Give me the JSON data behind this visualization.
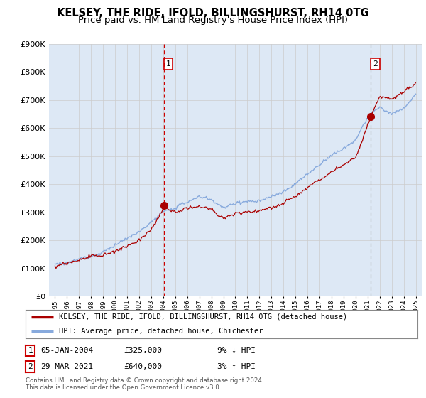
{
  "title": "KELSEY, THE RIDE, IFOLD, BILLINGSHURST, RH14 0TG",
  "subtitle": "Price paid vs. HM Land Registry's House Price Index (HPI)",
  "legend_line1": "KELSEY, THE RIDE, IFOLD, BILLINGSHURST, RH14 0TG (detached house)",
  "legend_line2": "HPI: Average price, detached house, Chichester",
  "annotation1": {
    "label": "1",
    "date": "05-JAN-2004",
    "price": "£325,000",
    "note": "9% ↓ HPI"
  },
  "annotation2": {
    "label": "2",
    "date": "29-MAR-2021",
    "price": "£640,000",
    "note": "3% ↑ HPI"
  },
  "footer": "Contains HM Land Registry data © Crown copyright and database right 2024.\nThis data is licensed under the Open Government Licence v3.0.",
  "sale1_x": 2004.04,
  "sale1_y": 325000,
  "sale2_x": 2021.24,
  "sale2_y": 640000,
  "ylim": [
    0,
    900000
  ],
  "xlim": [
    1994.5,
    2025.5
  ],
  "red_color": "#aa0000",
  "blue_color": "#88aadd",
  "vline1_color": "#cc0000",
  "vline2_color": "#aaaaaa",
  "grid_color": "#cccccc",
  "chart_bg_color": "#dde8f5",
  "background_color": "#ffffff",
  "title_fontsize": 10.5,
  "subtitle_fontsize": 9.5
}
